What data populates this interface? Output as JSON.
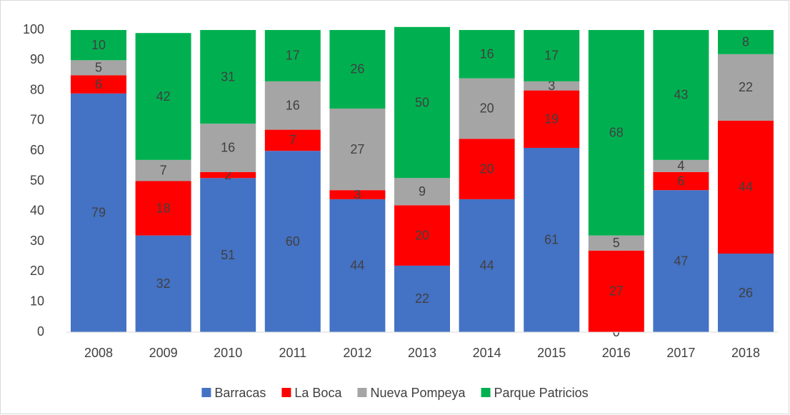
{
  "chart_data": {
    "type": "stacked_bar",
    "categories": [
      "2008",
      "2009",
      "2010",
      "2011",
      "2012",
      "2013",
      "2014",
      "2015",
      "2016",
      "2017",
      "2018"
    ],
    "series": [
      {
        "name": "Barracas",
        "color": "#4472c4",
        "values": [
          79,
          32,
          51,
          60,
          44,
          22,
          44,
          61,
          0,
          47,
          26
        ]
      },
      {
        "name": "La Boca",
        "color": "#ff0000",
        "values": [
          6,
          18,
          2,
          7,
          3,
          20,
          20,
          19,
          27,
          6,
          44
        ]
      },
      {
        "name": "Nueva Pompeya",
        "color": "#a5a5a5",
        "values": [
          5,
          7,
          16,
          16,
          27,
          9,
          20,
          3,
          5,
          4,
          22
        ]
      },
      {
        "name": "Parque Patricios",
        "color": "#00b050",
        "values": [
          10,
          42,
          31,
          17,
          26,
          50,
          16,
          17,
          68,
          43,
          8
        ]
      }
    ],
    "ylim": [
      0,
      100
    ],
    "yticks": [
      0,
      10,
      20,
      30,
      40,
      50,
      60,
      70,
      80,
      90,
      100
    ],
    "grid": false,
    "legend": "bottom"
  }
}
